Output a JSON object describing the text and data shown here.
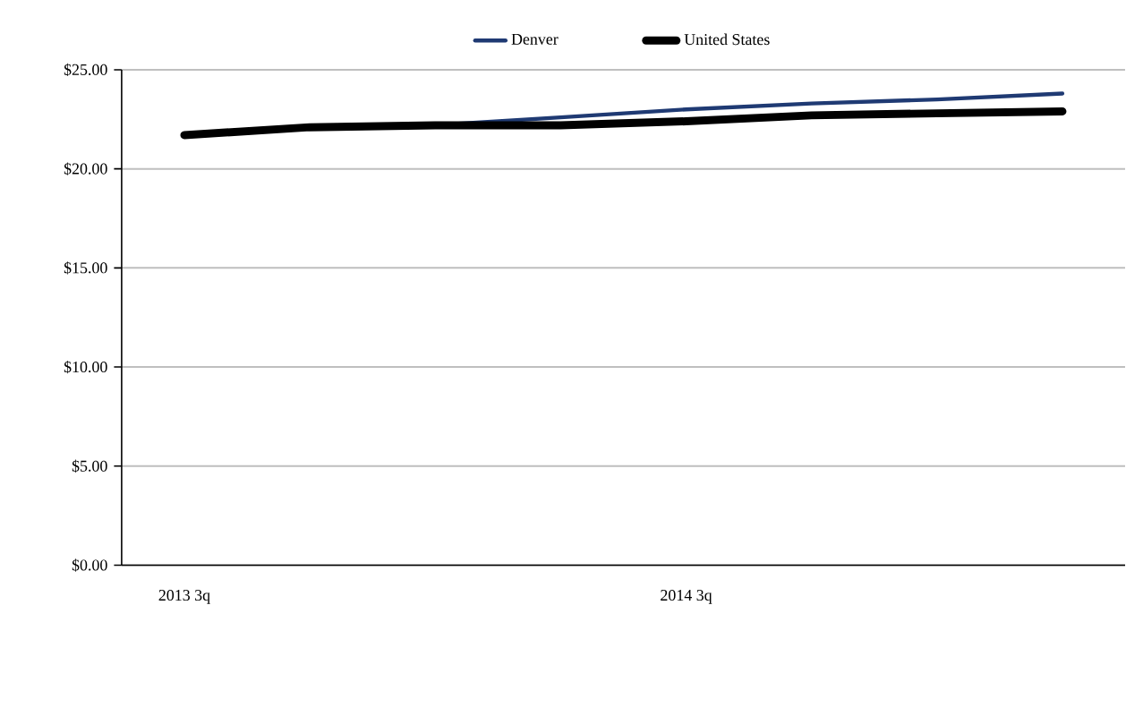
{
  "chart_data": {
    "type": "line",
    "categories": [
      "2013 3q",
      null,
      null,
      null,
      "2014 3q",
      null,
      null,
      null
    ],
    "series": [
      {
        "name": "Denver",
        "color": "#1f3a73",
        "values": [
          21.7,
          22.1,
          22.2,
          22.6,
          23.0,
          23.3,
          23.5,
          23.8
        ]
      },
      {
        "name": "United States",
        "color": "#000000",
        "values": [
          21.7,
          22.1,
          22.2,
          22.2,
          22.4,
          22.7,
          22.8,
          22.9
        ]
      }
    ],
    "ylim": [
      0,
      25
    ],
    "yticks": [
      {
        "value": 0,
        "label": "$0.00"
      },
      {
        "value": 5,
        "label": "$5.00"
      },
      {
        "value": 10,
        "label": "$10.00"
      },
      {
        "value": 15,
        "label": "$15.00"
      },
      {
        "value": 20,
        "label": "$20.00"
      },
      {
        "value": 25,
        "label": "$25.00"
      }
    ],
    "grid": "y",
    "legend": "top",
    "marker": "none",
    "line_style": "solid"
  }
}
